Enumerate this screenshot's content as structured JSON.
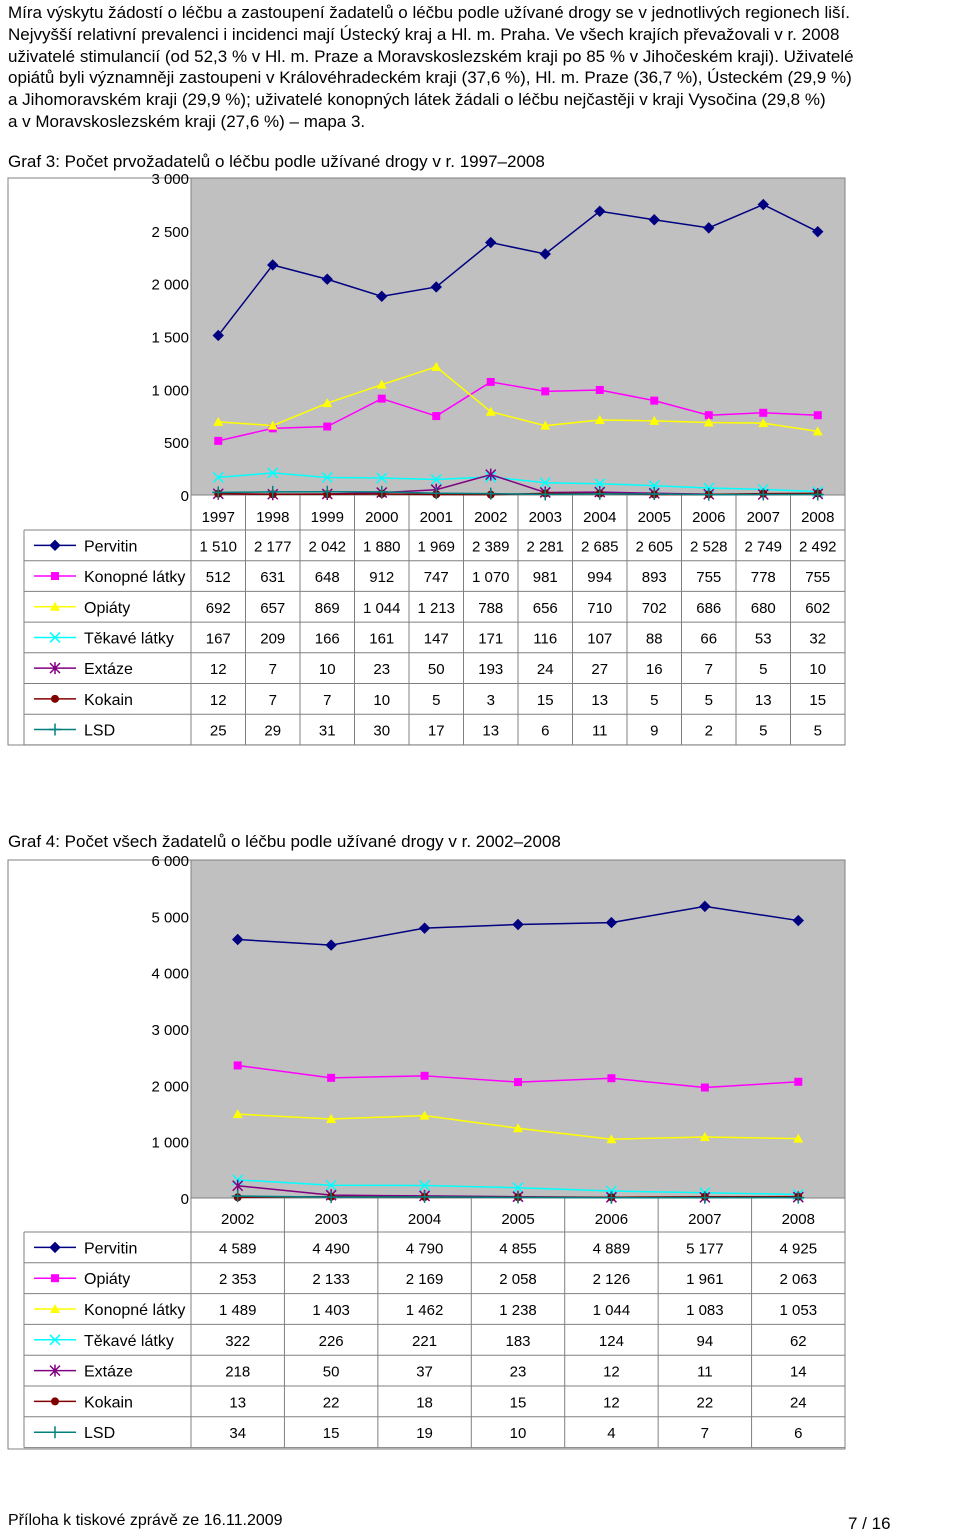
{
  "paragraph_lines": [
    "Míra výskytu žádostí o léčbu a zastoupení žadatelů o léčbu podle užívané drogy se v jednotlivých regionech liší.",
    "Nejvyšší relativní prevalenci i incidenci mají Ústecký kraj a Hl. m. Praha. Ve všech krajích převažovali v r. 2008",
    "uživatelé stimulancií (od 52,3 % v Hl. m. Praze a Moravskoslezském kraji po 85 % v Jihočeském kraji). Uživatelé",
    "opiátů byli významněji zastoupeni v Královéhradeckém kraji (37,6 %), Hl. m. Praze (36,7 %), Ústeckém (29,9 %)",
    "a Jihomoravském kraji (29,9 %); uživatelé konopných látek žádali o léčbu nejčastěji v kraji Vysočina (29,8 %)",
    "a v Moravskoslezském kraji (27,6 %) – mapa 3."
  ],
  "chart_data": [
    {
      "type": "line",
      "title": "Graf 3: Počet prvožadatelů o léčbu podle užívané drogy v r. 1997–2008",
      "ylim": [
        0,
        3000
      ],
      "yticks": [
        "0",
        "500",
        "1 000",
        "1 500",
        "2 000",
        "2 500",
        "3 000"
      ],
      "grid": false,
      "legend": "data table below chart",
      "categories": [
        "1997",
        "1998",
        "1999",
        "2000",
        "2001",
        "2002",
        "2003",
        "2004",
        "2005",
        "2006",
        "2007",
        "2008"
      ],
      "series": [
        {
          "name": "Pervitin",
          "color": "#000080",
          "marker": "diamond-icon",
          "values": [
            1510,
            2177,
            2042,
            1880,
            1969,
            2389,
            2281,
            2685,
            2605,
            2528,
            2749,
            2492
          ],
          "labels": [
            "1 510",
            "2 177",
            "2 042",
            "1 880",
            "1 969",
            "2 389",
            "2 281",
            "2 685",
            "2 605",
            "2 528",
            "2 749",
            "2 492"
          ]
        },
        {
          "name": "Konopné látky",
          "color": "#FF00FF",
          "marker": "square-icon",
          "values": [
            512,
            631,
            648,
            912,
            747,
            1070,
            981,
            994,
            893,
            755,
            778,
            755
          ],
          "labels": [
            "512",
            "631",
            "648",
            "912",
            "747",
            "1 070",
            "981",
            "994",
            "893",
            "755",
            "778",
            "755"
          ]
        },
        {
          "name": "Opiáty",
          "color": "#FFFF00",
          "marker": "triangle-icon",
          "values": [
            692,
            657,
            869,
            1044,
            1213,
            788,
            656,
            710,
            702,
            686,
            680,
            602
          ],
          "labels": [
            "692",
            "657",
            "869",
            "1 044",
            "1 213",
            "788",
            "656",
            "710",
            "702",
            "686",
            "680",
            "602"
          ]
        },
        {
          "name": "Těkavé látky",
          "color": "#00FFFF",
          "marker": "x-icon",
          "values": [
            167,
            209,
            166,
            161,
            147,
            171,
            116,
            107,
            88,
            66,
            53,
            32
          ],
          "labels": [
            "167",
            "209",
            "166",
            "161",
            "147",
            "171",
            "116",
            "107",
            "88",
            "66",
            "53",
            "32"
          ]
        },
        {
          "name": "Extáze",
          "color": "#800080",
          "marker": "asterisk-icon",
          "values": [
            12,
            7,
            10,
            23,
            50,
            193,
            24,
            27,
            16,
            7,
            5,
            10
          ],
          "labels": [
            "12",
            "7",
            "10",
            "23",
            "50",
            "193",
            "24",
            "27",
            "16",
            "7",
            "5",
            "10"
          ]
        },
        {
          "name": "Kokain",
          "color": "#800000",
          "marker": "circle-icon",
          "values": [
            12,
            7,
            7,
            10,
            5,
            3,
            15,
            13,
            5,
            5,
            13,
            15
          ],
          "labels": [
            "12",
            "7",
            "7",
            "10",
            "5",
            "3",
            "15",
            "13",
            "5",
            "5",
            "13",
            "15"
          ]
        },
        {
          "name": "LSD",
          "color": "#008080",
          "marker": "plus-icon",
          "values": [
            25,
            29,
            31,
            30,
            17,
            13,
            6,
            11,
            9,
            2,
            5,
            5
          ],
          "labels": [
            "25",
            "29",
            "31",
            "30",
            "17",
            "13",
            "6",
            "11",
            "9",
            "2",
            "5",
            "5"
          ]
        }
      ]
    },
    {
      "type": "line",
      "title": "Graf 4: Počet všech žadatelů o léčbu podle užívané drogy v r. 2002–2008",
      "ylim": [
        0,
        6000
      ],
      "yticks": [
        "0",
        "1 000",
        "2 000",
        "3 000",
        "4 000",
        "5 000",
        "6 000"
      ],
      "grid": false,
      "legend": "data table below chart",
      "categories": [
        "2002",
        "2003",
        "2004",
        "2005",
        "2006",
        "2007",
        "2008"
      ],
      "series": [
        {
          "name": "Pervitin",
          "color": "#000080",
          "marker": "diamond-icon",
          "values": [
            4589,
            4490,
            4790,
            4855,
            4889,
            5177,
            4925
          ],
          "labels": [
            "4 589",
            "4 490",
            "4 790",
            "4 855",
            "4 889",
            "5 177",
            "4 925"
          ]
        },
        {
          "name": "Opiáty",
          "color": "#FF00FF",
          "marker": "square-icon",
          "values": [
            2353,
            2133,
            2169,
            2058,
            2126,
            1961,
            2063
          ],
          "labels": [
            "2 353",
            "2 133",
            "2 169",
            "2 058",
            "2 126",
            "1 961",
            "2 063"
          ]
        },
        {
          "name": "Konopné látky",
          "color": "#FFFF00",
          "marker": "triangle-icon",
          "values": [
            1489,
            1403,
            1462,
            1238,
            1044,
            1083,
            1053
          ],
          "labels": [
            "1 489",
            "1 403",
            "1 462",
            "1 238",
            "1 044",
            "1 083",
            "1 053"
          ]
        },
        {
          "name": "Těkavé látky",
          "color": "#00FFFF",
          "marker": "x-icon",
          "values": [
            322,
            226,
            221,
            183,
            124,
            94,
            62
          ],
          "labels": [
            "322",
            "226",
            "221",
            "183",
            "124",
            "94",
            "62"
          ]
        },
        {
          "name": "Extáze",
          "color": "#800080",
          "marker": "asterisk-icon",
          "values": [
            218,
            50,
            37,
            23,
            12,
            11,
            14
          ],
          "labels": [
            "218",
            "50",
            "37",
            "23",
            "12",
            "11",
            "14"
          ]
        },
        {
          "name": "Kokain",
          "color": "#800000",
          "marker": "circle-icon",
          "values": [
            13,
            22,
            18,
            15,
            12,
            22,
            24
          ],
          "labels": [
            "13",
            "22",
            "18",
            "15",
            "12",
            "22",
            "24"
          ]
        },
        {
          "name": "LSD",
          "color": "#008080",
          "marker": "plus-icon",
          "values": [
            34,
            15,
            19,
            10,
            4,
            7,
            6
          ],
          "labels": [
            "34",
            "15",
            "19",
            "10",
            "4",
            "7",
            "6"
          ]
        }
      ]
    }
  ],
  "footer": {
    "left": "Příloha k tiskové zprávě ze 16.11.2009",
    "right": "7 / 16"
  }
}
